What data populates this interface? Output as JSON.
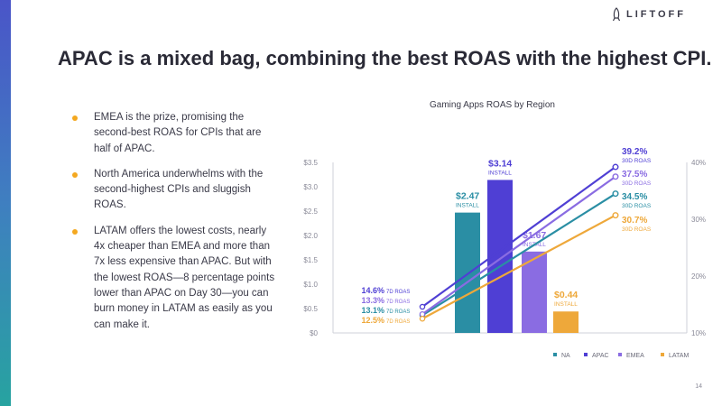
{
  "brand": {
    "logo_text": "LIFTOFF"
  },
  "slide": {
    "title": "APAC is a mixed bag, combining the best ROAS with the highest CPI.",
    "page_number": "14",
    "bullets": [
      "EMEA is the prize, promising the second-best ROAS for CPIs that are half of APAC.",
      "North America underwhelms with the second-highest CPIs and sluggish ROAS.",
      "LATAM offers the lowest costs, nearly 4x cheaper than EMEA and more than 7x less expensive than APAC. But with the lowest ROAS—8 percentage points lower than APAC on Day 30—you can burn money in LATAM as easily as you can make it."
    ]
  },
  "colors": {
    "NA": "#2a8ea4",
    "APAC": "#4f3fd4",
    "EMEA": "#8a6ce2",
    "LATAM": "#eea83a",
    "bullet": "#f4a820"
  },
  "chart_data": {
    "type": "bar",
    "title": "Gaming Apps ROAS by Region",
    "categories": [
      "NA",
      "APAC",
      "EMEA",
      "LATAM"
    ],
    "bars": {
      "values": [
        2.47,
        3.14,
        1.67,
        0.44
      ],
      "labels": [
        "$2.47",
        "$3.14",
        "$1.67",
        "$0.44"
      ],
      "sublabel": "INSTALL"
    },
    "left_axis": {
      "ticks": [
        "$0",
        "$0.5",
        "$1.0",
        "$1.5",
        "$2.0",
        "$2.5",
        "$3.0",
        "$3.5"
      ],
      "ylim": [
        0,
        3.5
      ]
    },
    "right_axis": {
      "ticks": [
        "10%",
        "20%",
        "30%",
        "40%"
      ],
      "ylim": [
        10,
        40
      ]
    },
    "lines": [
      {
        "name": "NA",
        "start": 13.1,
        "end": 34.5,
        "start_label": "13.1%",
        "end_label": "34.5%"
      },
      {
        "name": "APAC",
        "start": 14.6,
        "end": 39.2,
        "start_label": "14.6%",
        "end_label": "39.2%"
      },
      {
        "name": "EMEA",
        "start": 13.3,
        "end": 37.5,
        "start_label": "13.3%",
        "end_label": "37.5%"
      },
      {
        "name": "LATAM",
        "start": 12.5,
        "end": 30.7,
        "start_label": "12.5%",
        "end_label": "30.7%"
      }
    ],
    "start_sublabel": "7D ROAS",
    "end_sublabel": "30D ROAS",
    "legend": [
      "NA",
      "APAC",
      "EMEA",
      "LATAM"
    ],
    "legend_position": "bottom",
    "grid": false
  }
}
